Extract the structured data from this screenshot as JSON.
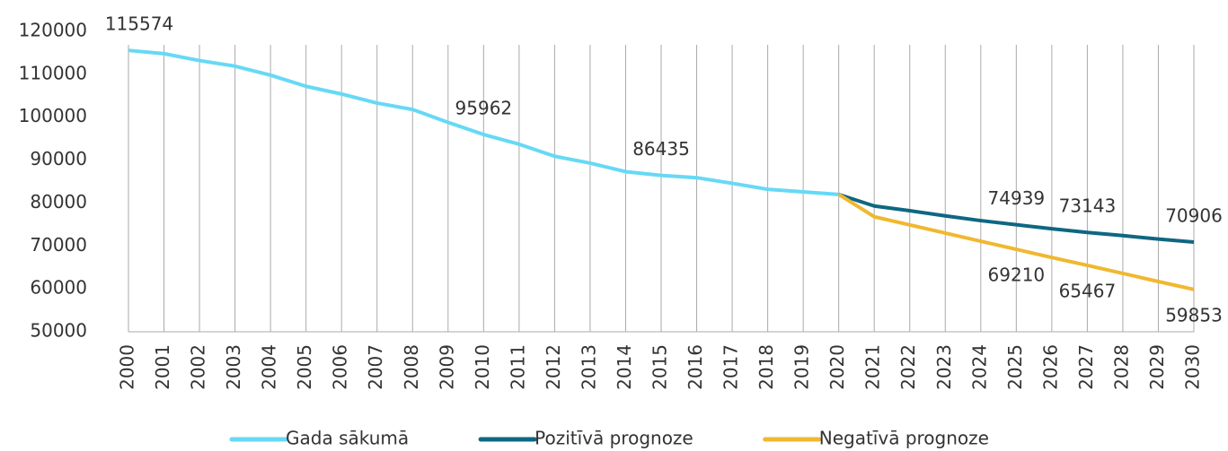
{
  "chart_data": {
    "type": "line",
    "categories": [
      "2000",
      "2001",
      "2002",
      "2003",
      "2004",
      "2005",
      "2006",
      "2007",
      "2008",
      "2009",
      "2010",
      "2011",
      "2012",
      "2013",
      "2014",
      "2015",
      "2016",
      "2017",
      "2018",
      "2019",
      "2020",
      "2021",
      "2022",
      "2023",
      "2024",
      "2025",
      "2026",
      "2027",
      "2028",
      "2029",
      "2030"
    ],
    "series": [
      {
        "name": "Gada sākumā",
        "color": "#66d9f5",
        "labels": [
          0,
          10,
          15
        ],
        "values": [
          115574,
          114800,
          113200,
          111900,
          109800,
          107200,
          105400,
          103300,
          101800,
          98800,
          95962,
          93700,
          90900,
          89300,
          87300,
          86435,
          85900,
          84600,
          83200,
          82600,
          82000,
          null,
          null,
          null,
          null,
          null,
          null,
          null,
          null,
          null,
          null
        ]
      },
      {
        "name": "Pozitīvā prognoze",
        "color": "#0e6782",
        "labels": [
          25,
          27,
          30
        ],
        "values": [
          null,
          null,
          null,
          null,
          null,
          null,
          null,
          null,
          null,
          null,
          null,
          null,
          null,
          null,
          null,
          null,
          null,
          null,
          null,
          null,
          82000,
          79300,
          78200,
          77000,
          75900,
          74939,
          74000,
          73143,
          72400,
          71600,
          70906
        ]
      },
      {
        "name": "Negatīvā prognoze",
        "color": "#f0b830",
        "labels": [
          25,
          27,
          30
        ],
        "values": [
          null,
          null,
          null,
          null,
          null,
          null,
          null,
          null,
          null,
          null,
          null,
          null,
          null,
          null,
          null,
          null,
          null,
          null,
          null,
          null,
          82000,
          76800,
          74900,
          73000,
          71100,
          69210,
          67300,
          65467,
          63600,
          61700,
          59853
        ]
      }
    ],
    "ylim": [
      50000,
      120000
    ],
    "yticks": [
      50000,
      60000,
      70000,
      80000,
      90000,
      100000,
      110000,
      120000
    ],
    "grid": "x",
    "legend": "bottom"
  }
}
